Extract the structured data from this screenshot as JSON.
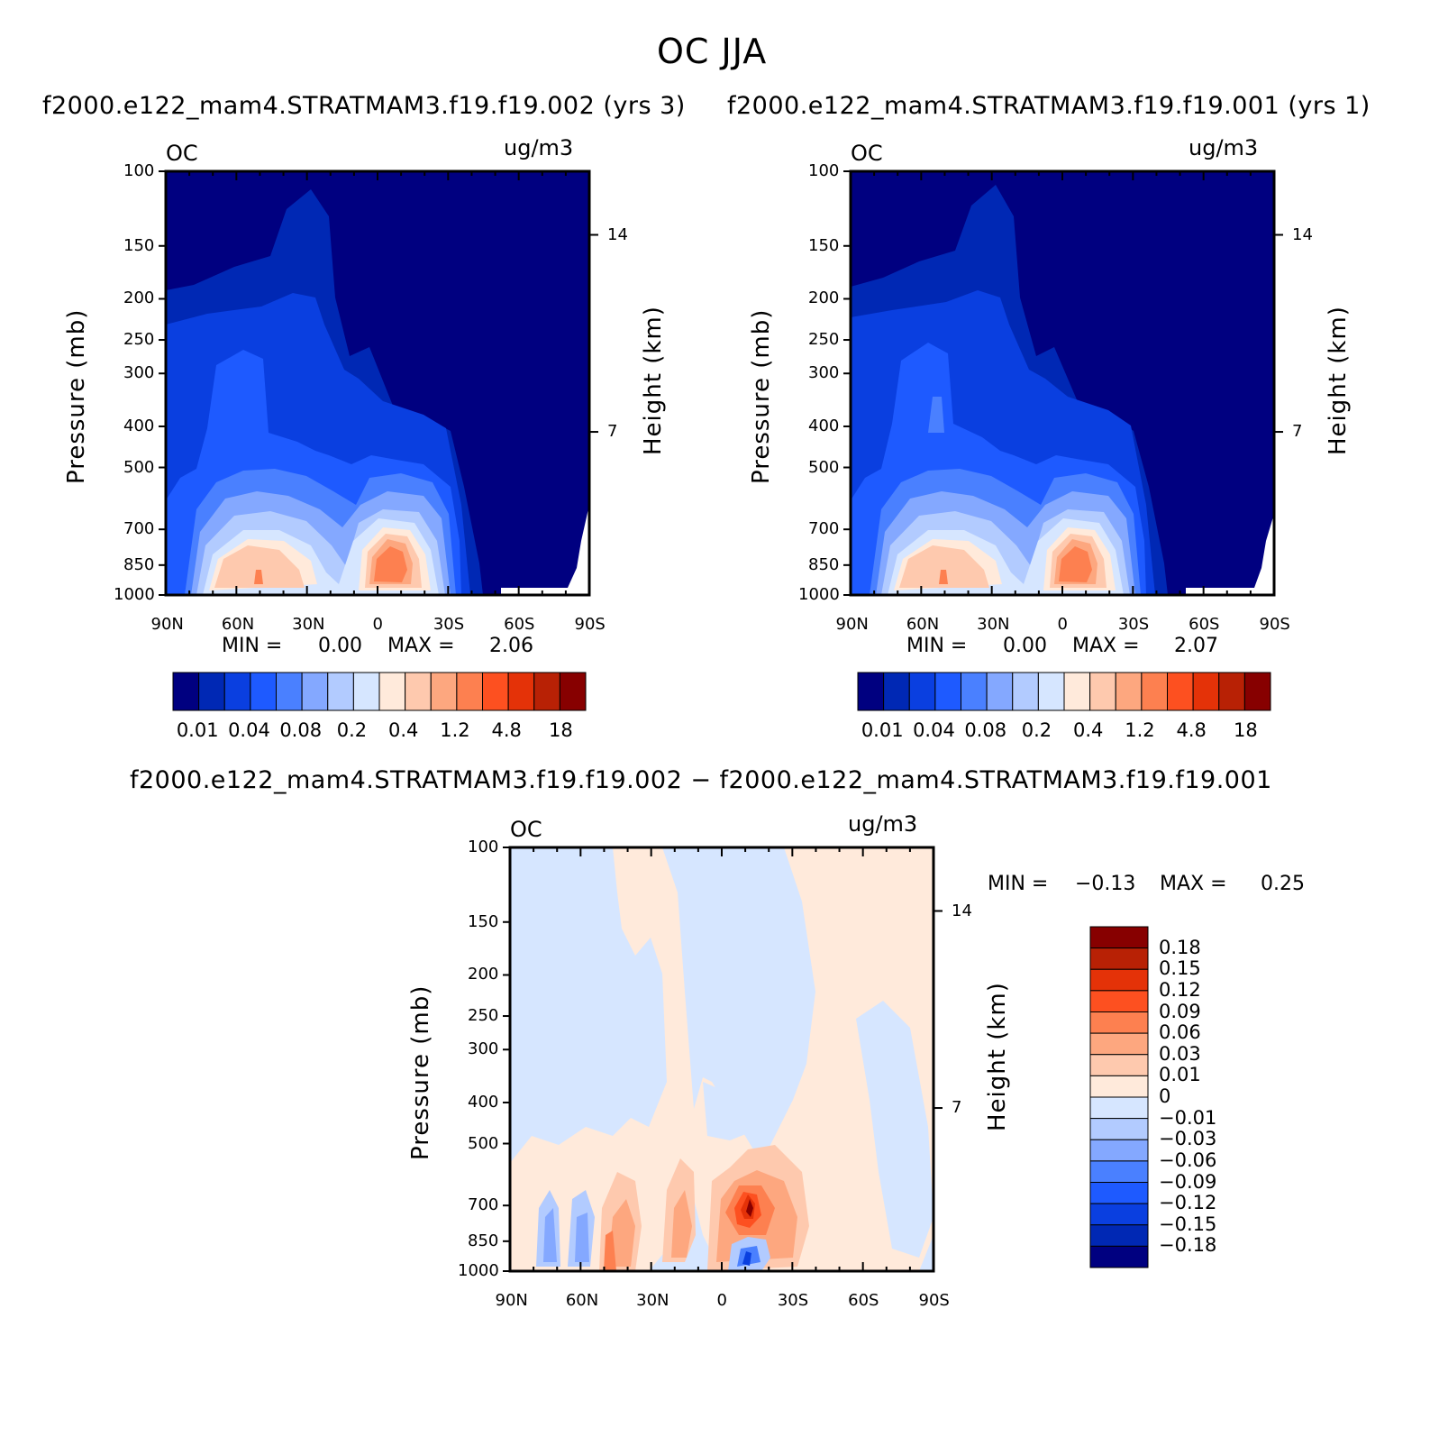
{
  "figure": {
    "title": "OC JJA",
    "panel_left_title": "f2000.e122_mam4.STRATMAM3.f19.f19.002 (yrs 3)",
    "panel_right_title": "f2000.e122_mam4.STRATMAM3.f19.f19.001 (yrs 1)",
    "diff_title": "f2000.e122_mam4.STRATMAM3.f19.f19.002 − f2000.e122_mam4.STRATMAM3.f19.f19.001"
  },
  "chart_data": [
    {
      "type": "heatmap",
      "title": "f2000.e122_mam4.STRATMAM3.f19.f19.002 (yrs 3)",
      "variable": "OC",
      "units": "ug/m3",
      "xlabel": "",
      "ylabel": "Pressure (mb)",
      "ylabel_right": "Height (km)",
      "x_ticks": [
        "90N",
        "60N",
        "30N",
        "0",
        "30S",
        "60S",
        "90S"
      ],
      "y_ticks": [
        "100",
        "150",
        "200",
        "250",
        "300",
        "400",
        "500",
        "700",
        "850",
        "1000"
      ],
      "y_ticks_right": [
        "14",
        "7"
      ],
      "min_label": "MIN =",
      "min_value": "0.00",
      "max_label": "MAX =",
      "max_value": "2.06",
      "colorbar_labels": [
        "0.01",
        "0.04",
        "0.08",
        "0.2",
        "0.4",
        "1.2",
        "4.8",
        "18"
      ],
      "colors": [
        "#000080",
        "#0028b4",
        "#0a3fe0",
        "#1e5aff",
        "#4a80ff",
        "#84a8ff",
        "#b2cbff",
        "#d6e6ff",
        "#ffeadb",
        "#fec9ae",
        "#fda77f",
        "#fd8050",
        "#fd5020",
        "#e43208",
        "#b82105",
        "#870000"
      ]
    },
    {
      "type": "heatmap",
      "title": "f2000.e122_mam4.STRATMAM3.f19.f19.001 (yrs 1)",
      "variable": "OC",
      "units": "ug/m3",
      "xlabel": "",
      "ylabel": "Pressure (mb)",
      "ylabel_right": "Height (km)",
      "x_ticks": [
        "90N",
        "60N",
        "30N",
        "0",
        "30S",
        "60S",
        "90S"
      ],
      "y_ticks": [
        "100",
        "150",
        "200",
        "250",
        "300",
        "400",
        "500",
        "700",
        "850",
        "1000"
      ],
      "y_ticks_right": [
        "14",
        "7"
      ],
      "min_label": "MIN =",
      "min_value": "0.00",
      "max_label": "MAX =",
      "max_value": "2.07",
      "colorbar_labels": [
        "0.01",
        "0.04",
        "0.08",
        "0.2",
        "0.4",
        "1.2",
        "4.8",
        "18"
      ]
    },
    {
      "type": "heatmap",
      "title": "f2000.e122_mam4.STRATMAM3.f19.f19.002 − f2000.e122_mam4.STRATMAM3.f19.f19.001",
      "variable": "OC",
      "units": "ug/m3",
      "xlabel": "",
      "ylabel": "Pressure (mb)",
      "ylabel_right": "Height (km)",
      "x_ticks": [
        "90N",
        "60N",
        "30N",
        "0",
        "30S",
        "60S",
        "90S"
      ],
      "y_ticks": [
        "100",
        "150",
        "200",
        "250",
        "300",
        "400",
        "500",
        "700",
        "850",
        "1000"
      ],
      "y_ticks_right": [
        "14",
        "7"
      ],
      "min_label": "MIN =",
      "min_value": "−0.13",
      "max_label": "MAX =",
      "max_value": "0.25",
      "colorbar_labels": [
        "0.18",
        "0.15",
        "0.12",
        "0.09",
        "0.06",
        "0.03",
        "0.01",
        "0",
        "−0.01",
        "−0.03",
        "−0.06",
        "−0.09",
        "−0.12",
        "−0.15",
        "−0.18"
      ],
      "colors": [
        "#870000",
        "#b82105",
        "#e43208",
        "#fd5020",
        "#fd8050",
        "#fda77f",
        "#fec9ae",
        "#ffeadb",
        "#d6e6ff",
        "#b2cbff",
        "#84a8ff",
        "#4a80ff",
        "#1e5aff",
        "#0a3fe0",
        "#0028b4",
        "#000080"
      ]
    }
  ]
}
